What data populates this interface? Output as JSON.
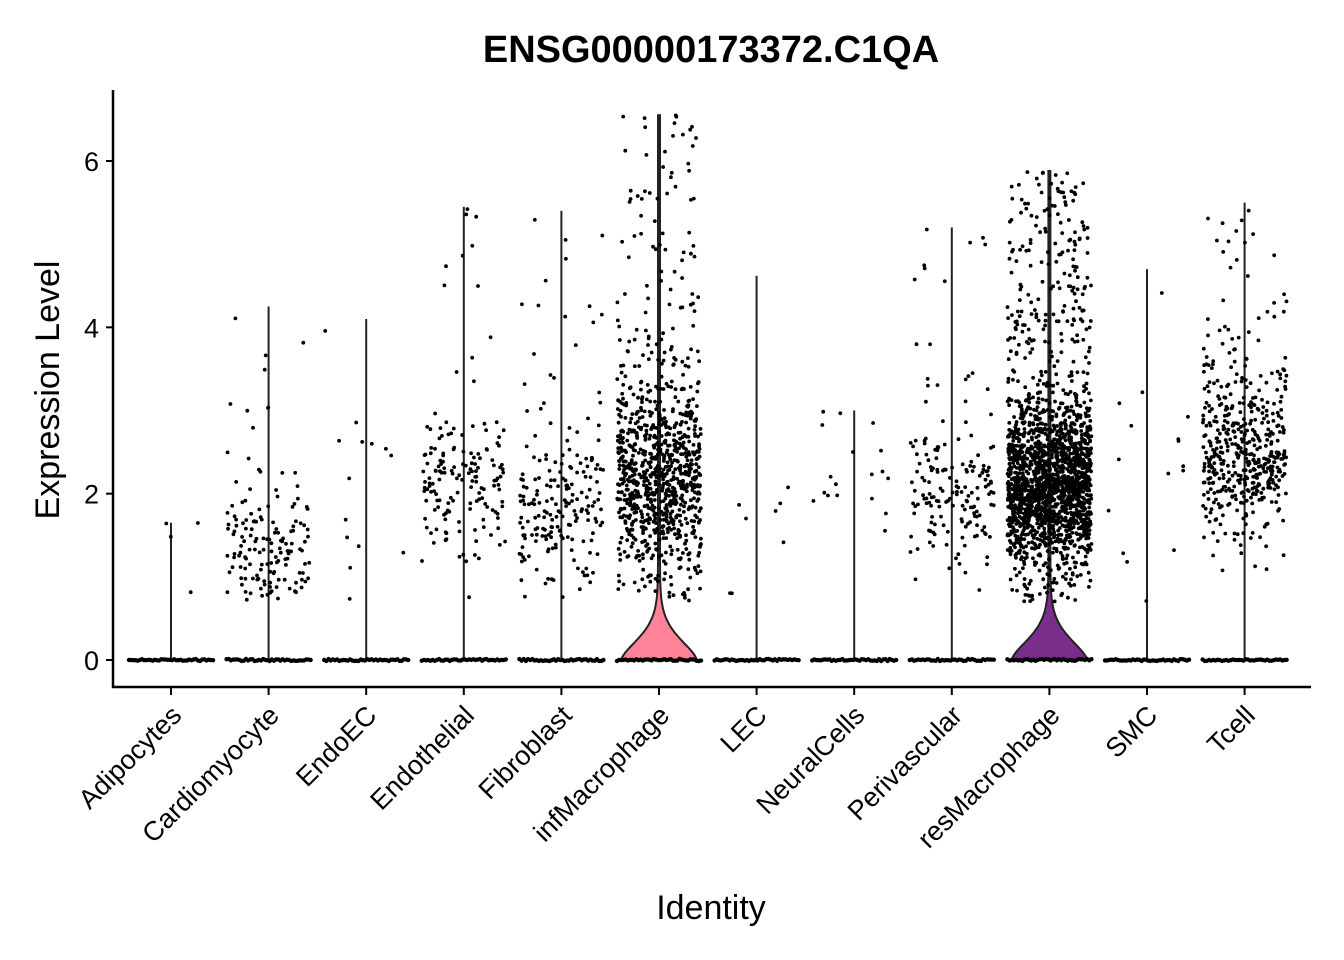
{
  "chart_data": {
    "type": "violin",
    "title": "ENSG00000173372.C1QA",
    "xlabel": "Identity",
    "ylabel": "Expression Level",
    "ylim": [
      -0.35,
      6.85
    ],
    "yticks": [
      0,
      2,
      4,
      6
    ],
    "categories": [
      "Adipocytes",
      "Cardiomyocyte",
      "EndoEC",
      "Endothelial",
      "Fibroblast",
      "infMacrophage",
      "LEC",
      "NeuralCells",
      "Perivascular",
      "resMacrophage",
      "SMC",
      "Tcell"
    ],
    "groups": [
      {
        "name": "Adipocytes",
        "color": "#F8766D",
        "max": 1.65,
        "n_expr": 4,
        "center": 1.3,
        "spread": 0.3,
        "violin_width": 0.0,
        "seed": 11
      },
      {
        "name": "Cardiomyocyte",
        "color": "#DE8C00",
        "max": 4.25,
        "n_expr": 150,
        "center": 1.25,
        "spread": 0.35,
        "violin_width": 0.0,
        "seed": 23
      },
      {
        "name": "EndoEC",
        "color": "#B79F00",
        "max": 4.1,
        "n_expr": 14,
        "center": 1.8,
        "spread": 0.9,
        "violin_width": 0.0,
        "seed": 37
      },
      {
        "name": "Endothelial",
        "color": "#7CAE00",
        "max": 5.45,
        "n_expr": 160,
        "center": 2.1,
        "spread": 0.45,
        "violin_width": 0.0,
        "seed": 41
      },
      {
        "name": "Fibroblast",
        "color": "#00BA38",
        "max": 5.4,
        "n_expr": 200,
        "center": 1.75,
        "spread": 0.45,
        "violin_width": 0.0,
        "seed": 53
      },
      {
        "name": "infMacrophage",
        "color": "#FF8398",
        "max": 6.55,
        "n_expr": 950,
        "center": 2.2,
        "spread": 0.6,
        "violin_width": 0.75,
        "seed": 67
      },
      {
        "name": "LEC",
        "color": "#00C1A3",
        "max": 4.62,
        "n_expr": 8,
        "center": 1.6,
        "spread": 0.5,
        "violin_width": 0.0,
        "seed": 71
      },
      {
        "name": "NeuralCells",
        "color": "#00BFC4",
        "max": 3.0,
        "n_expr": 18,
        "center": 2.2,
        "spread": 0.55,
        "violin_width": 0.0,
        "seed": 83
      },
      {
        "name": "Perivascular",
        "color": "#00B0F6",
        "max": 5.2,
        "n_expr": 170,
        "center": 2.0,
        "spread": 0.45,
        "violin_width": 0.0,
        "seed": 97
      },
      {
        "name": "resMacrophage",
        "color": "#7B2D8B",
        "max": 5.88,
        "n_expr": 2000,
        "center": 2.1,
        "spread": 0.5,
        "violin_width": 0.75,
        "seed": 101
      },
      {
        "name": "SMC",
        "color": "#E76BF3",
        "max": 4.7,
        "n_expr": 16,
        "center": 2.0,
        "spread": 0.6,
        "violin_width": 0.0,
        "seed": 113
      },
      {
        "name": "Tcell",
        "color": "#FF62BC",
        "max": 5.5,
        "n_expr": 500,
        "center": 2.45,
        "spread": 0.5,
        "violin_width": 0.0,
        "seed": 127
      }
    ]
  }
}
